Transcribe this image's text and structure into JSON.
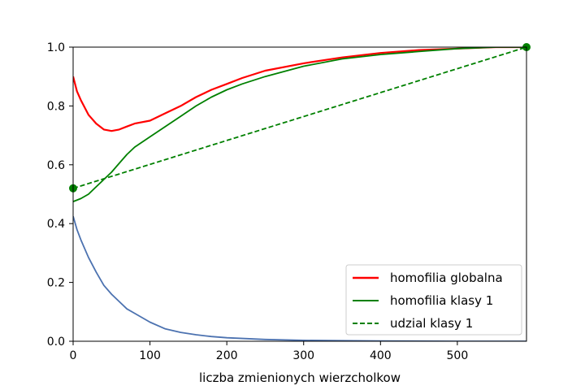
{
  "chart_data": {
    "type": "line",
    "title": "",
    "xlabel": "liczba zmienionych wierzcholkow",
    "ylabel": "",
    "xlim": [
      0,
      590
    ],
    "ylim": [
      0,
      1.0
    ],
    "xticks": [
      0,
      100,
      200,
      300,
      400,
      500
    ],
    "xtick_labels": [
      "0",
      "100",
      "200",
      "300",
      "400",
      "500"
    ],
    "yticks": [
      0.0,
      0.2,
      0.4,
      0.6,
      0.8,
      1.0
    ],
    "ytick_labels": [
      "0.0",
      "0.2",
      "0.4",
      "0.6",
      "0.8",
      "1.0"
    ],
    "grid": false,
    "legend_position": "lower-right",
    "series": [
      {
        "name": "homofilia globalna",
        "color": "#ff0000",
        "style": "solid",
        "x": [
          0,
          5,
          10,
          20,
          30,
          40,
          50,
          60,
          70,
          80,
          100,
          120,
          140,
          160,
          180,
          200,
          220,
          250,
          300,
          350,
          400,
          450,
          500,
          550,
          590
        ],
        "y": [
          0.9,
          0.85,
          0.82,
          0.77,
          0.74,
          0.72,
          0.715,
          0.72,
          0.73,
          0.74,
          0.75,
          0.775,
          0.8,
          0.83,
          0.855,
          0.875,
          0.895,
          0.92,
          0.945,
          0.965,
          0.98,
          0.99,
          0.995,
          1.0,
          1.0
        ]
      },
      {
        "name": "homofilia klasy 1",
        "color": "#008000",
        "style": "solid",
        "x": [
          0,
          10,
          20,
          30,
          40,
          50,
          60,
          70,
          80,
          100,
          120,
          140,
          160,
          180,
          200,
          220,
          250,
          300,
          350,
          400,
          450,
          500,
          550,
          590
        ],
        "y": [
          0.475,
          0.485,
          0.5,
          0.525,
          0.55,
          0.575,
          0.605,
          0.635,
          0.66,
          0.695,
          0.73,
          0.765,
          0.8,
          0.83,
          0.855,
          0.875,
          0.9,
          0.935,
          0.96,
          0.975,
          0.985,
          0.995,
          1.0,
          1.0
        ]
      },
      {
        "name": "udzial klasy 1",
        "color": "#008000",
        "style": "dashed",
        "x": [
          0,
          590
        ],
        "y": [
          0.52,
          1.0
        ]
      },
      {
        "name": "",
        "color": "#4c72b0",
        "style": "solid",
        "x": [
          0,
          5,
          10,
          20,
          30,
          40,
          50,
          60,
          70,
          80,
          100,
          120,
          140,
          160,
          180,
          200,
          250,
          300,
          350,
          400,
          500,
          590
        ],
        "y": [
          0.425,
          0.38,
          0.345,
          0.285,
          0.235,
          0.19,
          0.16,
          0.135,
          0.11,
          0.095,
          0.065,
          0.042,
          0.03,
          0.022,
          0.016,
          0.012,
          0.006,
          0.003,
          0.002,
          0.001,
          0.0,
          0.0
        ]
      }
    ],
    "markers": [
      {
        "x": 0,
        "y": 0.52,
        "color": "#008000"
      },
      {
        "x": 590,
        "y": 1.0,
        "color": "#008000"
      }
    ],
    "legend": [
      {
        "label": "homofilia globalna",
        "color": "#ff0000",
        "style": "solid"
      },
      {
        "label": "homofilia klasy 1",
        "color": "#008000",
        "style": "solid"
      },
      {
        "label": "udzial klasy 1",
        "color": "#008000",
        "style": "dashed"
      }
    ]
  }
}
